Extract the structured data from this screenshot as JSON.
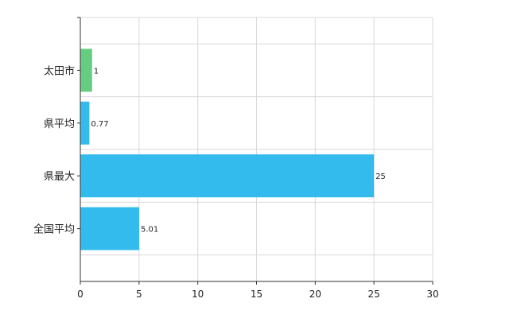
{
  "chart_data": {
    "type": "bar",
    "orientation": "horizontal",
    "categories": [
      "太田市",
      "県平均",
      "県最大",
      "全国平均"
    ],
    "values": [
      1,
      0.77,
      25,
      5.01
    ],
    "value_labels": [
      "1",
      "0.77",
      "25",
      "5.01"
    ],
    "bar_colors": [
      "#66cc80",
      "#33bbee",
      "#33bbee",
      "#33bbee"
    ],
    "xlim": [
      0,
      30
    ],
    "x_ticks": [
      "0",
      "5",
      "10",
      "15",
      "20",
      "25",
      "30"
    ],
    "grid": true,
    "title": "",
    "xlabel": "",
    "ylabel": ""
  }
}
